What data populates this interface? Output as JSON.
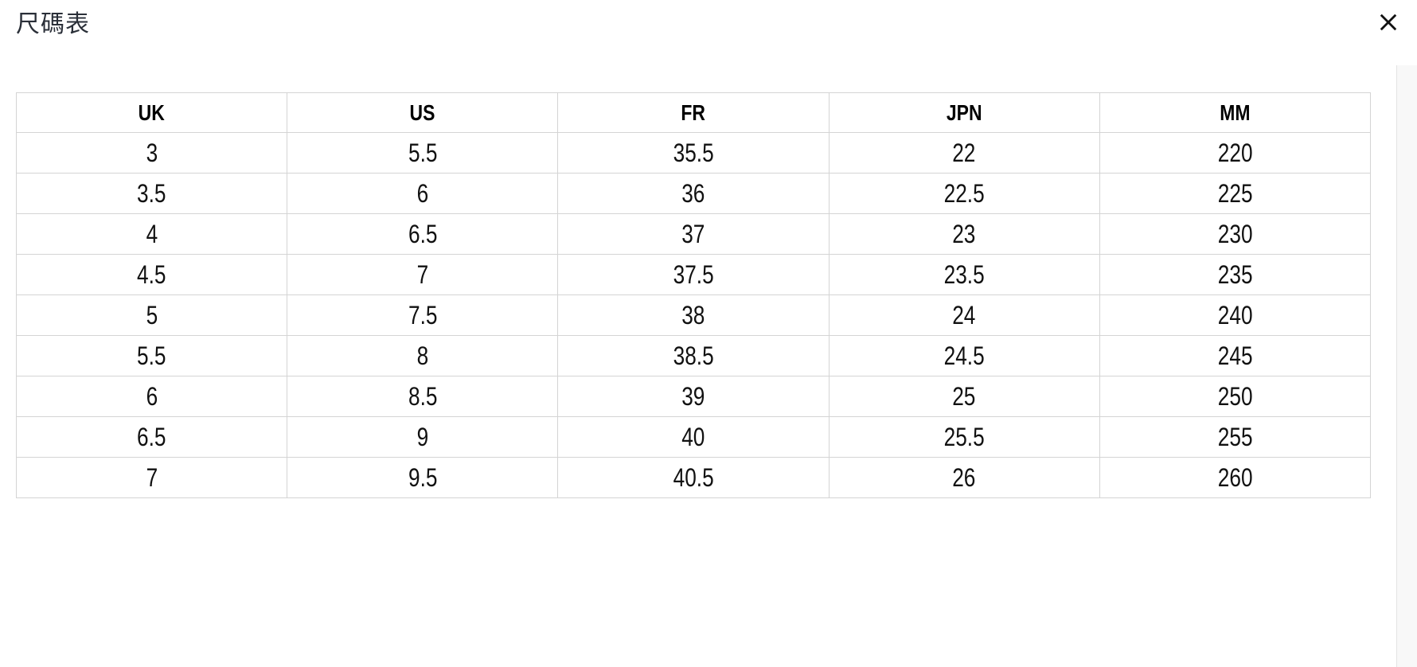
{
  "modal": {
    "title": "尺碼表"
  },
  "icons": {
    "close": "close-icon"
  },
  "size_chart": {
    "columns": [
      "UK",
      "US",
      "FR",
      "JPN",
      "MM"
    ],
    "rows": [
      [
        "3",
        "5.5",
        "35.5",
        "22",
        "220"
      ],
      [
        "3.5",
        "6",
        "36",
        "22.5",
        "225"
      ],
      [
        "4",
        "6.5",
        "37",
        "23",
        "230"
      ],
      [
        "4.5",
        "7",
        "37.5",
        "23.5",
        "235"
      ],
      [
        "5",
        "7.5",
        "38",
        "24",
        "240"
      ],
      [
        "5.5",
        "8",
        "38.5",
        "24.5",
        "245"
      ],
      [
        "6",
        "8.5",
        "39",
        "25",
        "250"
      ],
      [
        "6.5",
        "9",
        "40",
        "25.5",
        "255"
      ],
      [
        "7",
        "9.5",
        "40.5",
        "26",
        "260"
      ]
    ]
  },
  "colors": {
    "text": "#111111",
    "title": "#2a2f38",
    "table_border": "#d4d4d4",
    "scrollbar_track": "#f8f8f8",
    "scrollbar_edge": "#e3e3e3"
  }
}
